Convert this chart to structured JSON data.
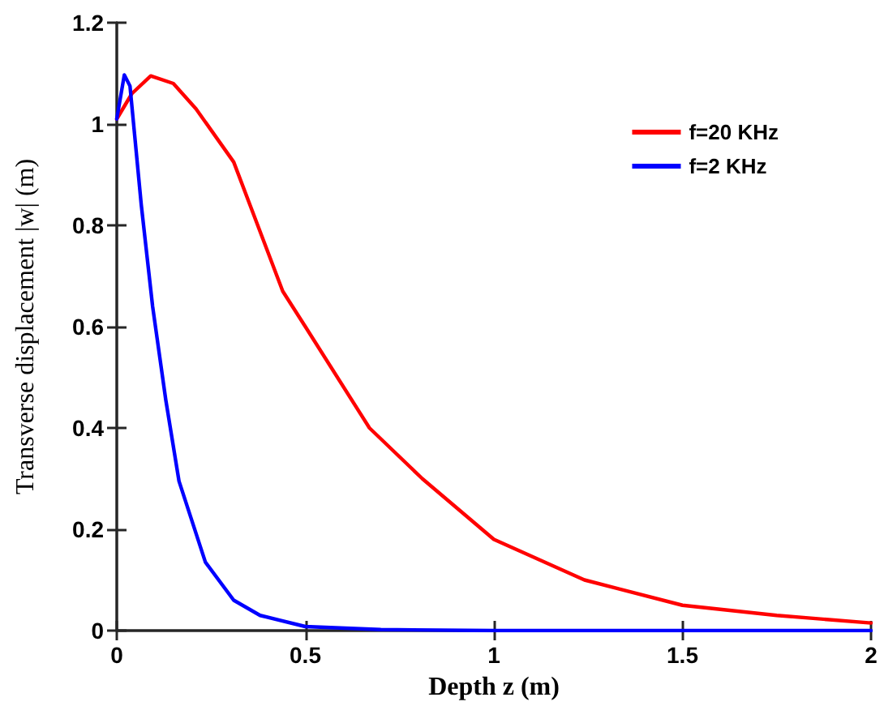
{
  "chart_data": {
    "type": "line",
    "xlabel": "Depth z (m)",
    "ylabel": "Transverse displacement |w| (m)",
    "xlim": [
      0,
      2
    ],
    "xticks": [
      0,
      0.5,
      1,
      1.5,
      2
    ],
    "ylim": [
      0,
      1.2
    ],
    "yticks": [
      0,
      0.2,
      0.4,
      0.6,
      0.8,
      1,
      1.2
    ],
    "legend": "top right",
    "marker": "none",
    "line_style": "solid",
    "grid": false,
    "series": [
      {
        "name": "f=20 KHz",
        "color": "#ff0000",
        "x": [
          0,
          0.04,
          0.09,
          0.15,
          0.21,
          0.31,
          0.44,
          0.5,
          0.67,
          0.81,
          1.0,
          1.24,
          1.5,
          1.75,
          2
        ],
        "values": [
          1.01,
          1.06,
          1.095,
          1.08,
          1.03,
          0.925,
          0.67,
          0.6,
          0.4,
          0.3,
          0.18,
          0.1,
          0.05,
          0.03,
          0.015
        ]
      },
      {
        "name": "f=2 KHz",
        "color": "#0000ff",
        "x": [
          0,
          0.02,
          0.035,
          0.065,
          0.095,
          0.13,
          0.165,
          0.235,
          0.31,
          0.38,
          0.5,
          0.7,
          1,
          1.5,
          2
        ],
        "values": [
          1.01,
          1.097,
          1.075,
          0.84,
          0.64,
          0.455,
          0.295,
          0.135,
          0.06,
          0.03,
          0.008,
          0.002,
          0,
          0,
          0
        ]
      }
    ]
  }
}
